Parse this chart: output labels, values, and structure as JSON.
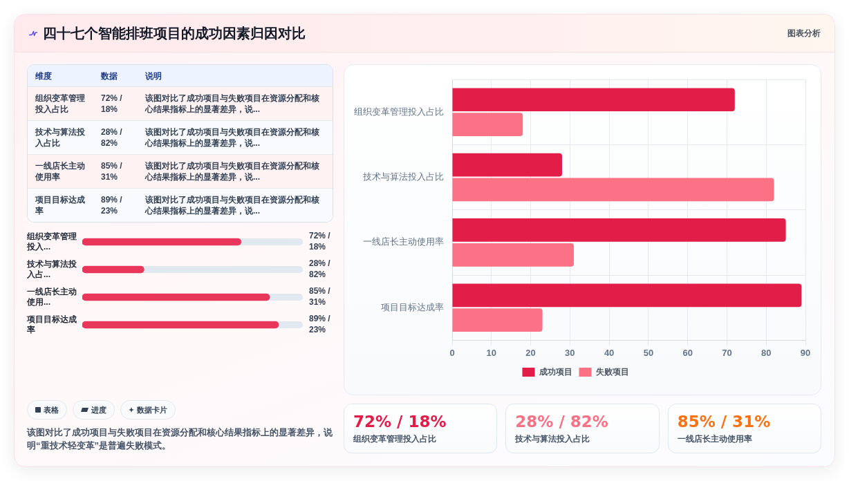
{
  "chart_data": [
    {
      "type": "other",
      "title": "四十七个智能排班项目的成功因素归因对比",
      "annotations": [
        "图表分析"
      ]
    },
    {
      "type": "other",
      "annotations": [
        "维度",
        "数据",
        "说明",
        "组织变革管理投入占比",
        "72% / 18%",
        "该图对比了成功项目与失败项目在资源分配和核心结果指标上的显著差异，说...",
        "技术与算法投入占比",
        "28% / 82%",
        "该图对比了成功项目与失败项目在资源分配和核心结果指标上的显著差异，说...",
        "一线店长主动使用率",
        "85% / 31%",
        "该图对比了成功项目与失败项目在资源分配和核心结果指标上的显著差异，说...",
        "项目目标达成率",
        "89% / 23%",
        "该图对比了成功项目与失败项目在资源分配和核心结果指标上的显著差异，说..."
      ]
    },
    {
      "type": "bar",
      "orientation": "horizontal",
      "categories": [
        "组织变革管理投入...",
        "技术与算法投入占...",
        "一线店长主动使用...",
        "项目目标达成率"
      ],
      "values": [
        72,
        28,
        85,
        89
      ],
      "color": "#e8375a",
      "xlim": [
        0,
        100
      ],
      "value_labels": [
        "72% / 18%",
        "28% / 82%",
        "85% / 31%",
        "89% / 23%"
      ],
      "tick_labels": "y"
    },
    {
      "type": "bar",
      "orientation": "horizontal",
      "categories": [
        "组织变革管理投入占比",
        "技术与算法投入占比",
        "一线店长主动使用率",
        "项目目标达成率"
      ],
      "series": [
        {
          "name": "成功项目",
          "color": "#e11d48",
          "values": [
            72,
            28,
            85,
            89
          ]
        },
        {
          "name": "失败项目",
          "color": "#fb7185",
          "values": [
            18,
            82,
            31,
            23
          ]
        }
      ],
      "xlim": [
        0,
        90
      ],
      "xticks": [
        0,
        10,
        20,
        30,
        40,
        50,
        60,
        70,
        80,
        90
      ],
      "grid": true,
      "legend": "bottom"
    },
    {
      "type": "other",
      "annotations": [
        "72% / 18%",
        "组织变革管理投入占比",
        "28% / 82%",
        "技术与算法投入占比",
        "85% / 31%",
        "一线店长主动使用率"
      ],
      "colors": [
        "#e11d48",
        "#f87185",
        "#f97316"
      ]
    },
    {
      "type": "other",
      "annotations": [
        "表格",
        "进度",
        "数据卡片",
        "该图对比了成功项目与失败项目在资源分配和核心结果指标上的显著差异，说明“重技术轻变革”是普遍失败模式。"
      ]
    }
  ]
}
